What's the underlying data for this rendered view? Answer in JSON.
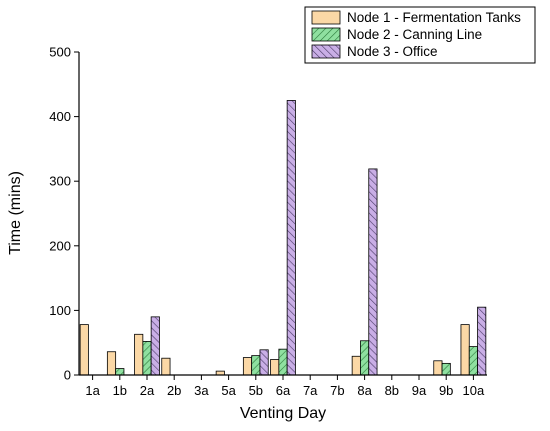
{
  "chart_data": {
    "type": "bar",
    "title": "",
    "xlabel": "Venting Day",
    "ylabel": "Time (mins)",
    "ylim": [
      0,
      500
    ],
    "yticks": [
      0,
      100,
      200,
      300,
      400,
      500
    ],
    "grid": false,
    "legend_position": "top-right",
    "categories": [
      "1a",
      "1b",
      "2a",
      "2b",
      "3a",
      "5a",
      "5b",
      "6a",
      "7a",
      "7b",
      "8a",
      "8b",
      "9a",
      "9b",
      "10a"
    ],
    "series": [
      {
        "name": "Node 1 - Fermentation Tanks",
        "color": "#FBD8A6",
        "pattern": "solid",
        "values": [
          78,
          36,
          63,
          26,
          0,
          6,
          27,
          24,
          0,
          0,
          29,
          0,
          0,
          22,
          78
        ]
      },
      {
        "name": "Node 2 - Canning Line",
        "color": "#8FE0A0",
        "pattern": "hatch",
        "values": [
          0,
          10,
          52,
          0,
          0,
          0,
          30,
          40,
          0,
          0,
          53,
          0,
          0,
          18,
          44
        ]
      },
      {
        "name": "Node 3 - Office",
        "color": "#C9AEE6",
        "pattern": "hatch",
        "values": [
          0,
          0,
          90,
          0,
          0,
          0,
          39,
          425,
          0,
          0,
          319,
          0,
          0,
          0,
          105
        ]
      }
    ]
  }
}
